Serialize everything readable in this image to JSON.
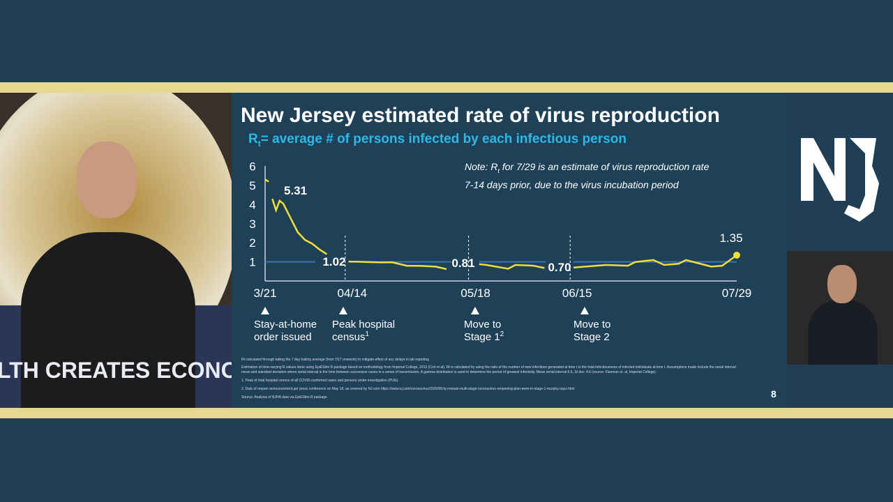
{
  "slide": {
    "title": "New Jersey estimated rate of virus reproduction",
    "subtitle_main": "R",
    "subtitle_sub": "t",
    "subtitle_rest": "= average # of persons infected by each infectious person",
    "note_line1_a": "Note: R",
    "note_line1_sub": "t",
    "note_line1_b": " for 7/29 is an estimate of virus reproduction rate",
    "note_line2": "7-14 days prior, due to the virus incubation period",
    "footnotes": [
      "Rt calculated through taking the 7 day trailing average (from 7/17 onwards) to mitigate effect of any delays in lab reporting",
      "Estimation of time-varying R values done using EpiEStim R package based on methodology from Imperial College, 2013 (Cori et al).    Rt is calculated by using the ratio of the number of new infections generated at time t to the total infectiousness of infected individuals at time t.  Assumptions made include the serial interval",
      "mean and standard deviation where serial interval is the time between successive cases in a series of transmission.  A gamma distribution is used to determine the period of greatest infectivity.  Mean serial interval 6.5, St dev. 4.6 (source: Flaxman et. al, Imperial College).",
      "1. Peak of total hospital census of all COVID-confirmed cases and persons under investigation (PUIs).",
      "2. Date of reopen announcement per press conference on May 18, as covered by NJ.com https://www.nj.com/coronavirus/2020/05/nj-reveals-multi-stage-coronavirus-reopening-plan-were-in-stage-1-murphy-says.html",
      "Source: Analysis of NJHA data via EpiEStim R package"
    ],
    "page_number": "8"
  },
  "video": {
    "podium_text": "LTH CREATES ECONO"
  },
  "logo": {
    "text": "NJ"
  },
  "colors": {
    "line": "#f2de3a",
    "reference": "#3a6fb8",
    "background": "#1f4158",
    "band": "#e6d88e",
    "subtitle": "#2fb7e6"
  },
  "chart_data": {
    "type": "line",
    "ylim": [
      0,
      6
    ],
    "yticks": [
      "1",
      "2",
      "3",
      "4",
      "5",
      "6"
    ],
    "xticks": [
      "3/21",
      "04/14",
      "05/18",
      "06/15",
      "07/29"
    ],
    "reference_line": 1,
    "series": [
      {
        "points": [
          [
            "3/21",
            5.31
          ],
          [
            "3/22",
            5.2
          ],
          [
            "3/23",
            null
          ],
          [
            "3/23",
            4.3
          ],
          [
            "3/24",
            3.7
          ],
          [
            "3/25",
            4.2
          ],
          [
            "3/26",
            4.05
          ],
          [
            "3/28",
            3.3
          ],
          [
            "3/30",
            2.55
          ],
          [
            "4/1",
            2.15
          ],
          [
            "4/3",
            1.95
          ],
          [
            "4/5",
            1.65
          ],
          [
            "4/7",
            1.4
          ],
          [
            "4/10",
            null
          ],
          [
            "4/13",
            1.02
          ],
          [
            "4/17",
            1.0
          ],
          [
            "4/22",
            0.97
          ],
          [
            "4/25",
            0.98
          ],
          [
            "4/29",
            0.8
          ],
          [
            "5/3",
            0.79
          ],
          [
            "5/7",
            0.75
          ],
          [
            "5/10",
            0.62
          ],
          [
            "5/15",
            null
          ],
          [
            "5/19",
            0.88
          ],
          [
            "5/21",
            0.84
          ],
          [
            "5/27",
            0.64
          ],
          [
            "5/29",
            0.84
          ],
          [
            "6/3",
            0.8
          ],
          [
            "6/6",
            0.68
          ],
          [
            "6/10",
            null
          ],
          [
            "6/14",
            0.7
          ],
          [
            "6/23",
            0.84
          ],
          [
            "6/29",
            0.8
          ],
          [
            "7/1",
            0.99
          ],
          [
            "7/6",
            1.1
          ],
          [
            "7/9",
            0.84
          ],
          [
            "7/13",
            0.9
          ],
          [
            "7/15",
            1.1
          ],
          [
            "7/18",
            0.95
          ],
          [
            "7/22",
            0.75
          ],
          [
            "7/25",
            0.8
          ],
          [
            "7/29",
            1.35
          ]
        ]
      }
    ],
    "data_labels": [
      {
        "date": "3/21",
        "text": "5.31"
      },
      {
        "date": "4/14",
        "text": "1.02"
      },
      {
        "date": "5/18",
        "text": "0.81"
      },
      {
        "date": "6/15",
        "text": "0.70"
      },
      {
        "date": "7/29",
        "text": "1.35"
      }
    ],
    "events": [
      {
        "date": "3/21",
        "line1": "Stay-at-home",
        "line2": "order issued",
        "sup": ""
      },
      {
        "date": "4/14",
        "line1": "Peak hospital",
        "line2": "census",
        "sup": "1"
      },
      {
        "date": "5/18",
        "line1": "Move to",
        "line2": "Stage 1",
        "sup": "2"
      },
      {
        "date": "6/15",
        "line1": "Move to",
        "line2": "Stage 2",
        "sup": ""
      }
    ]
  }
}
